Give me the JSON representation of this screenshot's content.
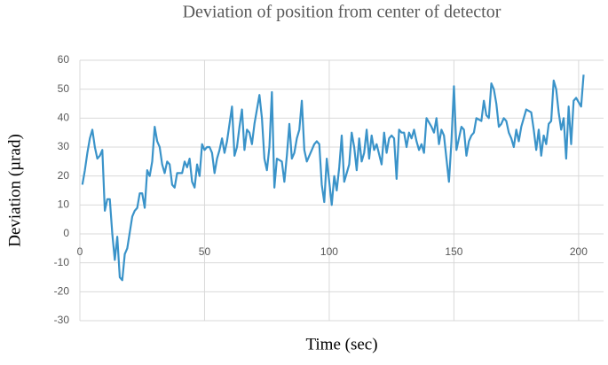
{
  "chart_data": {
    "type": "line",
    "title": "Deviation of position from center of detector",
    "x_label": "Time (sec)",
    "y_label": "Deviation (µrad)",
    "x": [
      1,
      2,
      3,
      4,
      5,
      6,
      7,
      8,
      9,
      10,
      11,
      12,
      13,
      14,
      15,
      16,
      17,
      18,
      19,
      21,
      22,
      23,
      24,
      25,
      26,
      27,
      28,
      29,
      30,
      31,
      32,
      33,
      34,
      35,
      36,
      37,
      38,
      39,
      41,
      42,
      43,
      44,
      45,
      46,
      47,
      48,
      49,
      50,
      51,
      52,
      53,
      54,
      55,
      56,
      57,
      58,
      59,
      61,
      62,
      63,
      64,
      65,
      66,
      67,
      68,
      69,
      70,
      71,
      72,
      73,
      74,
      75,
      76,
      77,
      78,
      79,
      81,
      82,
      83,
      84,
      85,
      86,
      87,
      88,
      89,
      90,
      91,
      92,
      93,
      94,
      95,
      96,
      97,
      98,
      99,
      101,
      102,
      103,
      104,
      105,
      106,
      107,
      108,
      109,
      110,
      111,
      112,
      113,
      114,
      115,
      116,
      117,
      118,
      119,
      121,
      122,
      123,
      124,
      125,
      126,
      127,
      128,
      129,
      130,
      131,
      132,
      133,
      134,
      135,
      136,
      137,
      138,
      139,
      141,
      142,
      143,
      144,
      145,
      146,
      147,
      148,
      149,
      150,
      151,
      152,
      153,
      154,
      155,
      156,
      157,
      158,
      159,
      161,
      162,
      163,
      164,
      165,
      166,
      167,
      168,
      169,
      170,
      171,
      172,
      173,
      174,
      175,
      176,
      177,
      178,
      179,
      181,
      182,
      183,
      184,
      185,
      186,
      187,
      188,
      189,
      190,
      191,
      192,
      193,
      194,
      195,
      196,
      197,
      198,
      199,
      201,
      202
    ],
    "values": [
      17,
      22,
      28,
      33,
      36,
      30,
      26,
      27,
      29,
      8,
      12,
      12,
      0,
      -9,
      -1,
      -15,
      -16,
      -7,
      -5,
      6,
      8,
      9,
      14,
      14,
      9,
      22,
      20,
      25,
      37,
      32,
      30,
      24,
      21,
      25,
      24,
      17,
      16,
      21,
      21,
      25,
      23,
      26,
      18,
      16,
      24,
      20,
      31,
      29,
      30,
      30,
      28,
      21,
      26,
      29,
      33,
      28,
      32,
      44,
      27,
      30,
      37,
      43,
      29,
      36,
      35,
      31,
      38,
      43,
      48,
      40,
      26,
      22,
      30,
      49,
      16,
      26,
      25,
      18,
      27,
      38,
      26,
      28,
      33,
      36,
      46,
      29,
      25,
      27,
      29,
      31,
      32,
      31,
      17,
      11,
      26,
      10,
      20,
      15,
      23,
      34,
      18,
      21,
      24,
      35,
      30,
      22,
      33,
      25,
      28,
      36,
      26,
      34,
      29,
      31,
      24,
      35,
      28,
      33,
      34,
      33,
      19,
      36,
      35,
      35,
      30,
      35,
      33,
      36,
      32,
      29,
      31,
      28,
      40,
      37,
      35,
      40,
      31,
      36,
      34,
      26,
      18,
      32,
      51,
      29,
      33,
      37,
      36,
      27,
      32,
      34,
      35,
      40,
      39,
      46,
      41,
      40,
      52,
      50,
      45,
      37,
      38,
      40,
      39,
      35,
      33,
      30,
      36,
      32,
      37,
      40,
      43,
      42,
      36,
      29,
      36,
      27,
      34,
      31,
      38,
      39,
      53,
      50,
      42,
      36,
      40,
      26,
      44,
      31,
      46,
      47,
      44,
      55
    ],
    "color": "#3a93c9",
    "xlim": [
      0,
      210
    ],
    "xticks": [
      0,
      50,
      100,
      150,
      200
    ],
    "ylim": [
      -30,
      60
    ],
    "yticks": [
      -30,
      -20,
      -10,
      0,
      10,
      20,
      30,
      40,
      50,
      60
    ],
    "grid": true
  }
}
